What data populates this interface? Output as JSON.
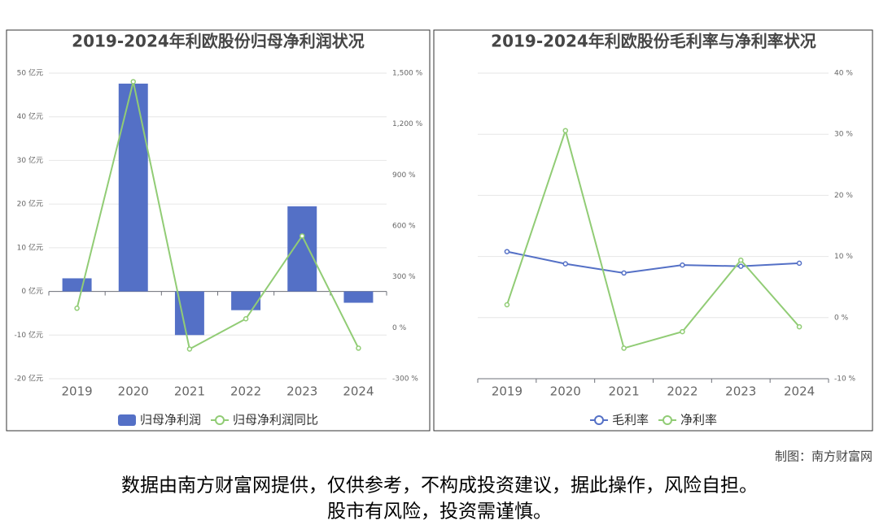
{
  "chart_data": [
    {
      "type": "combo",
      "title": "2019-2024年利欧股份归母净利润状况",
      "categories": [
        "2019",
        "2020",
        "2021",
        "2022",
        "2023",
        "2024"
      ],
      "series": [
        {
          "name": "归母净利润",
          "type": "bar",
          "color": "#5470c6",
          "values": [
            3.0,
            47.6,
            -10.0,
            -4.3,
            19.5,
            -2.6
          ]
        },
        {
          "name": "归母净利润同比",
          "type": "line",
          "axis": "y2",
          "color": "#91cc75",
          "values": [
            115,
            1450,
            -125,
            53,
            541,
            -120
          ]
        }
      ],
      "ylim": [
        -20,
        50
      ],
      "yticks": [
        {
          "value": -20,
          "label": "-20 亿元"
        },
        {
          "value": -10,
          "label": "-10 亿元"
        },
        {
          "value": 0,
          "label": "0 亿元"
        },
        {
          "value": 10,
          "label": "10 亿元"
        },
        {
          "value": 20,
          "label": "20 亿元"
        },
        {
          "value": 30,
          "label": "30 亿元"
        },
        {
          "value": 40,
          "label": "40 亿元"
        },
        {
          "value": 50,
          "label": "50 亿元"
        }
      ],
      "y2lim": [
        -300,
        1500
      ],
      "y2ticks": [
        {
          "value": -300,
          "label": "-300 %"
        },
        {
          "value": 0,
          "label": "0 %"
        },
        {
          "value": 300,
          "label": "300 %"
        },
        {
          "value": 600,
          "label": "600 %"
        },
        {
          "value": 900,
          "label": "900 %"
        },
        {
          "value": 1200,
          "label": "1,200 %"
        },
        {
          "value": 1500,
          "label": "1,500 %"
        }
      ],
      "grid": true,
      "xaxis_at_zero": true
    },
    {
      "type": "line",
      "title": "2019-2024年利欧股份毛利率与净利率状况",
      "categories": [
        "2019",
        "2020",
        "2021",
        "2022",
        "2023",
        "2024"
      ],
      "series": [
        {
          "name": "毛利率",
          "type": "line",
          "axis": "y2",
          "color": "#5470c6",
          "values": [
            10.8,
            8.8,
            7.3,
            8.6,
            8.4,
            8.9
          ]
        },
        {
          "name": "净利率",
          "type": "line",
          "axis": "y2",
          "color": "#91cc75",
          "values": [
            2.1,
            30.6,
            -5.0,
            -2.3,
            9.4,
            -1.5
          ]
        }
      ],
      "y2lim": [
        -10,
        40
      ],
      "y2ticks": [
        {
          "value": -10,
          "label": "-10 %"
        },
        {
          "value": 0,
          "label": "0 %"
        },
        {
          "value": 10,
          "label": "10 %"
        },
        {
          "value": 20,
          "label": "20 %"
        },
        {
          "value": 30,
          "label": "30 %"
        },
        {
          "value": 40,
          "label": "40 %"
        }
      ],
      "grid": true,
      "xaxis_at_zero": false
    }
  ],
  "footer": {
    "credit": "制图：南方财富网",
    "disclaimer": [
      "数据由南方财富网提供，仅供参考，不构成投资建议，据此操作，风险自担。",
      "股市有风险，投资需谨慎。"
    ]
  }
}
